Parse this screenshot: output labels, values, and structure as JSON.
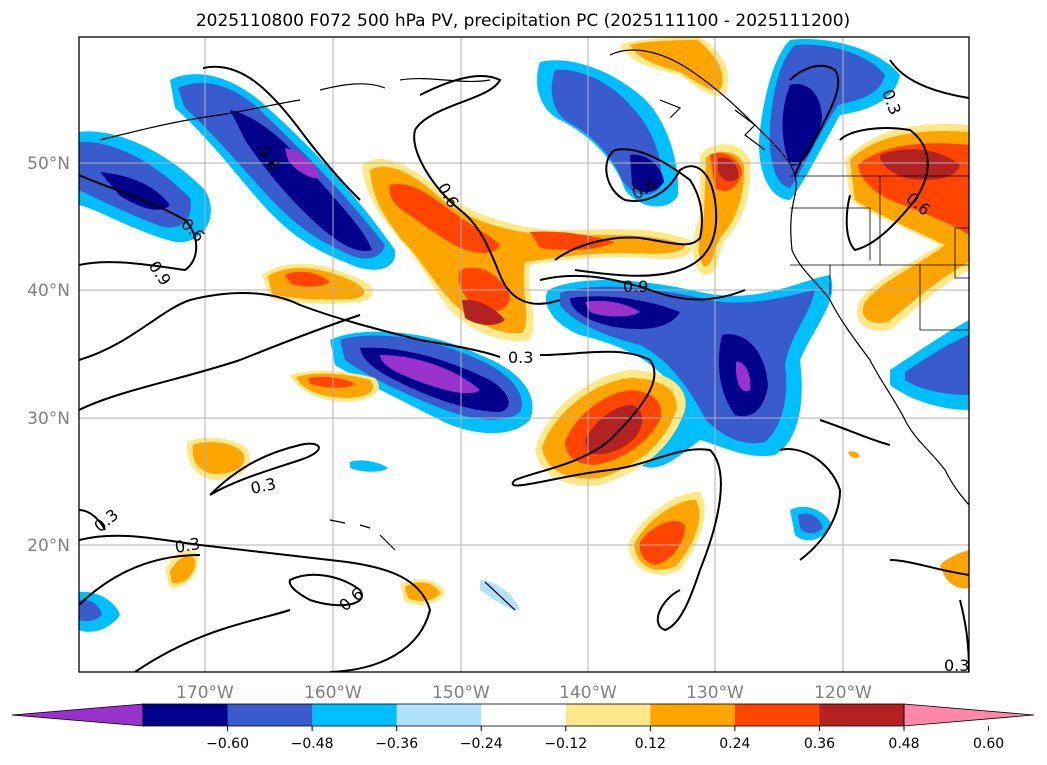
{
  "title": "2025110800 F072 500 hPa PV, precipitation PC (2025111100 - 2025111200)",
  "map": {
    "lon_labels": [
      "170°W",
      "160°W",
      "150°W",
      "140°W",
      "130°W",
      "120°W"
    ],
    "lat_labels": [
      "50°N",
      "40°N",
      "30°N",
      "20°N"
    ],
    "contour_labels": [
      "0.6",
      "0.9",
      "0.6",
      "0.6",
      "0.9",
      "0.6",
      "0.3",
      "0.3",
      "0.3",
      "0.3",
      "0.6",
      "0.3"
    ],
    "coastline_color": "#000000",
    "grid_color": "#b0b0b0"
  },
  "colorbar": {
    "tick_labels": [
      "−0.60",
      "−0.48",
      "−0.36",
      "−0.24",
      "−0.12",
      "0.12",
      "0.24",
      "0.36",
      "0.48",
      "0.60"
    ],
    "colors": [
      "#9932cc",
      "#00008b",
      "#3a5bcd",
      "#00bfff",
      "#b0e2ff",
      "#ffffff",
      "#ffe88a",
      "#ffa500",
      "#ff4500",
      "#b22222",
      "#ff88aa"
    ]
  }
}
